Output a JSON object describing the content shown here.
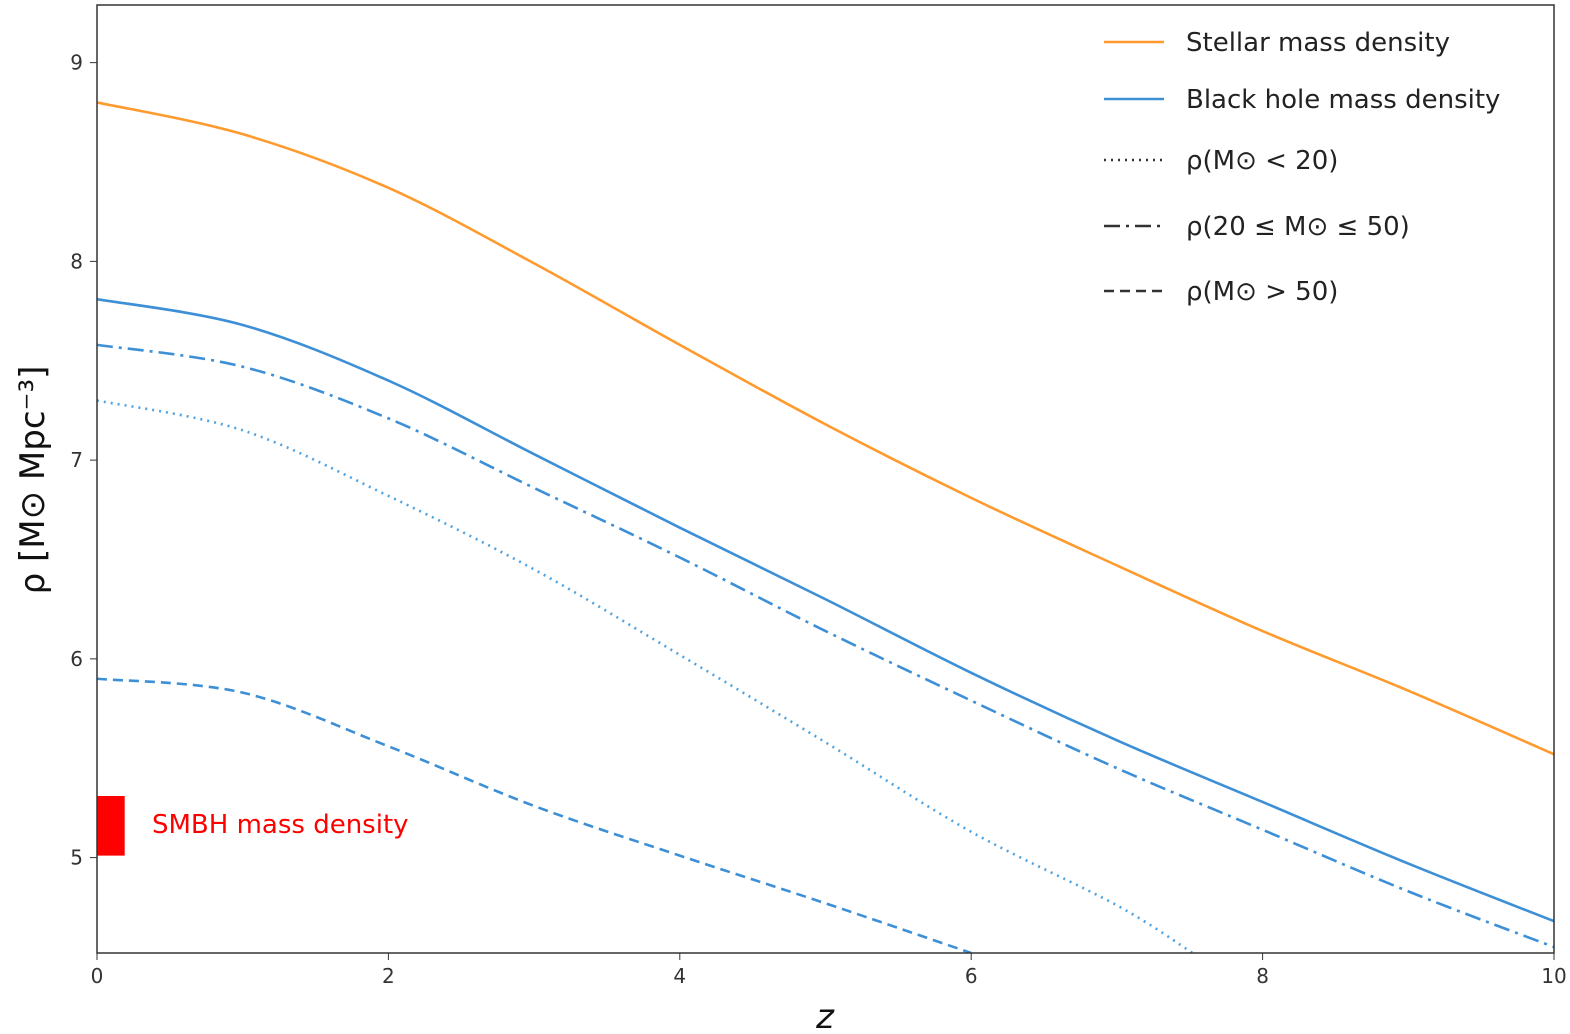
{
  "chart_data": {
    "type": "line",
    "title": "",
    "xlabel": "z",
    "ylabel": "ρ [M⊙ Mpc⁻³]",
    "xlim": [
      0,
      10
    ],
    "ylim": [
      4.52,
      9.29
    ],
    "grid": false,
    "legend_position": "top-right",
    "x_ticks": [
      "0",
      "2",
      "4",
      "6",
      "8",
      "10"
    ],
    "y_ticks": [
      "5",
      "6",
      "7",
      "8",
      "9"
    ],
    "x": [
      0,
      1,
      2,
      3,
      4,
      5,
      6,
      7,
      8,
      9,
      10
    ],
    "series": [
      {
        "name": "Stellar mass density",
        "color": "#ff9a2e",
        "style": "solid",
        "values": [
          8.8,
          8.64,
          8.37,
          7.99,
          7.58,
          7.18,
          6.81,
          6.47,
          6.14,
          5.84,
          5.52
        ]
      },
      {
        "name": "Black hole mass density",
        "color": "#3d8fd6",
        "style": "solid",
        "values": [
          7.81,
          7.68,
          7.4,
          7.03,
          6.66,
          6.3,
          5.93,
          5.59,
          5.28,
          4.97,
          4.68
        ]
      },
      {
        "name": "ρ(M⊙ < 20)",
        "color": "#4fa3e0",
        "style": "dotted",
        "values": [
          7.3,
          7.15,
          6.82,
          6.45,
          6.02,
          5.58,
          5.13,
          4.76,
          null,
          null,
          null
        ],
        "end": [
          7.52,
          4.52
        ]
      },
      {
        "name": "ρ(20 ≤ M⊙ ≤ 50)",
        "color": "#3d8fd6",
        "style": "dashdot",
        "values": [
          7.58,
          7.47,
          7.21,
          6.86,
          6.51,
          6.14,
          5.79,
          5.45,
          5.14,
          4.83,
          4.55
        ]
      },
      {
        "name": "ρ(M⊙ > 50)",
        "color": "#3d8fd6",
        "style": "dashed",
        "values": [
          5.9,
          5.83,
          5.56,
          5.26,
          5.01,
          4.77,
          4.52,
          null,
          null,
          null,
          null
        ]
      }
    ],
    "legend_sample_color": "#333333",
    "annotations": [
      {
        "text": "SMBH mass density",
        "color": "#ff0000",
        "z_range": [
          0,
          0.19
        ],
        "rho_range": [
          5.01,
          5.31
        ]
      }
    ]
  }
}
